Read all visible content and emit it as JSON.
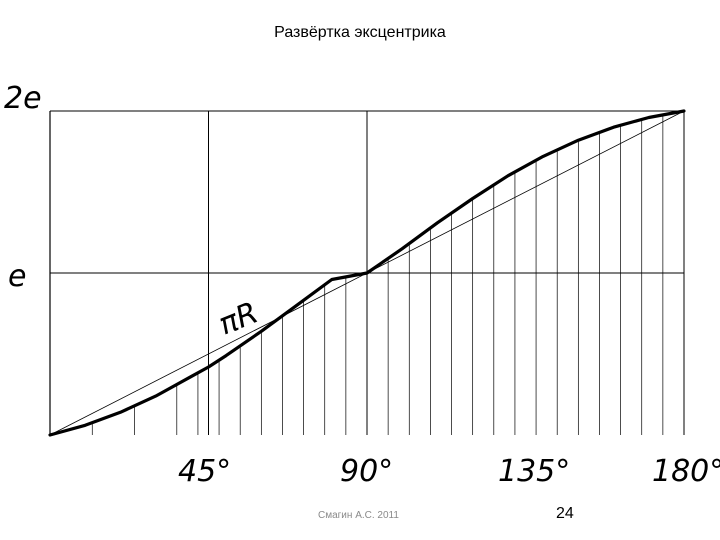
{
  "title": "Развёртка эксцентрика",
  "chart_data": {
    "type": "line",
    "title": "Развёртка эксцентрика",
    "y_tick_labels": [
      "2e",
      "e"
    ],
    "x_tick_labels": [
      "45°",
      "90°",
      "135°",
      "180°"
    ],
    "chord_label": "πR",
    "xlim": [
      0,
      180
    ],
    "ylim": [
      0,
      2
    ],
    "series": [
      {
        "x": [
          0,
          10,
          20,
          30,
          40,
          45,
          50,
          60,
          70,
          80,
          90,
          100,
          110,
          120,
          130,
          140,
          150,
          160,
          170,
          180
        ],
        "y": [
          0,
          0.06,
          0.14,
          0.24,
          0.36,
          0.42,
          0.49,
          0.64,
          0.8,
          0.96,
          1.0,
          1.15,
          1.31,
          1.46,
          1.6,
          1.72,
          1.82,
          1.9,
          1.96,
          2.0
        ]
      }
    ],
    "chord": {
      "x": [
        0,
        180
      ],
      "y": [
        0,
        2
      ]
    },
    "grid_x": [
      45,
      90,
      180
    ],
    "grid_y": [
      1,
      2
    ],
    "hatch_step": 6
  },
  "footer": {
    "author": "Смагин А.С. 2011",
    "page": "24"
  }
}
